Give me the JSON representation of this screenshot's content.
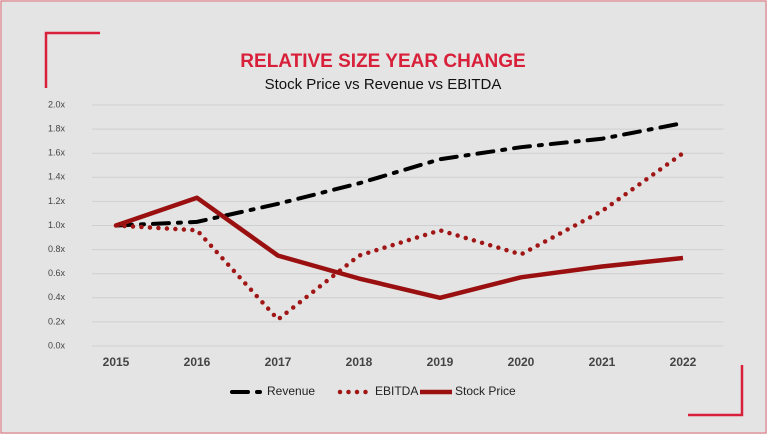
{
  "chart_data": {
    "type": "line",
    "title": "RELATIVE SIZE YEAR CHANGE",
    "subtitle": "Stock Price vs Revenue vs EBITDA",
    "categories": [
      "2015",
      "2016",
      "2017",
      "2018",
      "2019",
      "2020",
      "2021",
      "2022"
    ],
    "series": [
      {
        "name": "Revenue",
        "color": "#000000",
        "style": "dashdot",
        "values": [
          1.0,
          1.03,
          1.18,
          1.35,
          1.55,
          1.65,
          1.72,
          1.85
        ]
      },
      {
        "name": "EBITDA",
        "color": "#a01515",
        "style": "dotted",
        "values": [
          1.0,
          0.96,
          0.22,
          0.75,
          0.96,
          0.76,
          1.12,
          1.6
        ]
      },
      {
        "name": "Stock Price",
        "color": "#9a1010",
        "style": "solid",
        "values": [
          1.0,
          1.23,
          0.75,
          0.56,
          0.4,
          0.57,
          0.66,
          0.73
        ]
      }
    ],
    "ylim": [
      0,
      2
    ],
    "yticks": [
      {
        "value": 0,
        "label": "0.0x"
      },
      {
        "value": 0.2,
        "label": "0.2x"
      },
      {
        "value": 0.4,
        "label": "0.4x"
      },
      {
        "value": 0.6,
        "label": "0.6x"
      },
      {
        "value": 0.8,
        "label": "0.8x"
      },
      {
        "value": 1.0,
        "label": "1.0x"
      },
      {
        "value": 1.2,
        "label": "1.2x"
      },
      {
        "value": 1.4,
        "label": "1.4x"
      },
      {
        "value": 1.6,
        "label": "1.6x"
      },
      {
        "value": 1.8,
        "label": "1.8x"
      },
      {
        "value": 2.0,
        "label": "2.0x"
      }
    ],
    "grid": true,
    "legend": "bottom"
  }
}
